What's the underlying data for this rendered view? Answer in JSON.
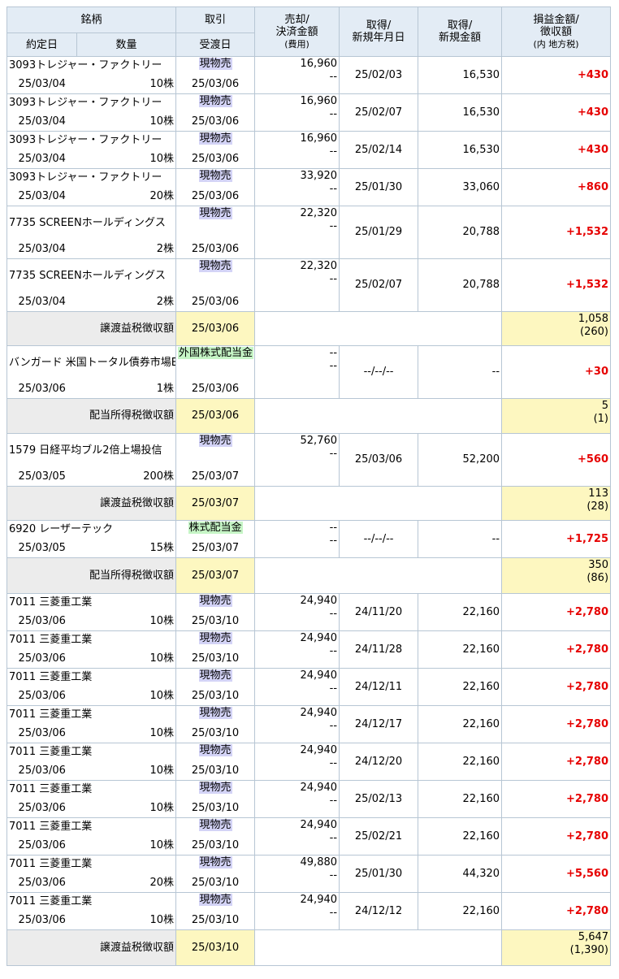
{
  "headers": {
    "stock": "銘柄",
    "trade": "取引",
    "contract_date": "約定日",
    "quantity": "数量",
    "settlement_date": "受渡日",
    "sale_line1": "売却/",
    "sale_line2": "決済金額",
    "sale_line3": "(費用)",
    "acq_date_line1": "取得/",
    "acq_date_line2": "新規年月日",
    "acq_amt_line1": "取得/",
    "acq_amt_line2": "新規金額",
    "pl_line1": "損益金額/",
    "pl_line2": "徴収額",
    "pl_line3": "(内 地方税)"
  },
  "rows": [
    {
      "kind": "trade",
      "name": "3093トレジャー・ファクトリー",
      "type": "現物売",
      "type_style": "sell",
      "contract": "25/03/04",
      "qty": "10株",
      "settle": "25/03/06",
      "sale": "16,960",
      "cost": "--",
      "acq_date": "25/02/03",
      "acq_amount": "16,530",
      "pl": "+430"
    },
    {
      "kind": "trade",
      "name": "3093トレジャー・ファクトリー",
      "type": "現物売",
      "type_style": "sell",
      "contract": "25/03/04",
      "qty": "10株",
      "settle": "25/03/06",
      "sale": "16,960",
      "cost": "--",
      "acq_date": "25/02/07",
      "acq_amount": "16,530",
      "pl": "+430"
    },
    {
      "kind": "trade",
      "name": "3093トレジャー・ファクトリー",
      "type": "現物売",
      "type_style": "sell",
      "contract": "25/03/04",
      "qty": "10株",
      "settle": "25/03/06",
      "sale": "16,960",
      "cost": "--",
      "acq_date": "25/02/14",
      "acq_amount": "16,530",
      "pl": "+430"
    },
    {
      "kind": "trade",
      "name": "3093トレジャー・ファクトリー",
      "type": "現物売",
      "type_style": "sell",
      "contract": "25/03/04",
      "qty": "20株",
      "settle": "25/03/06",
      "sale": "33,920",
      "cost": "--",
      "acq_date": "25/01/30",
      "acq_amount": "33,060",
      "pl": "+860"
    },
    {
      "kind": "trade",
      "name": "7735 SCREENホールディングス",
      "type": "現物売",
      "type_style": "sell",
      "contract": "25/03/04",
      "qty": "2株",
      "settle": "25/03/06",
      "sale": "22,320",
      "cost": "--",
      "acq_date": "25/01/29",
      "acq_amount": "20,788",
      "pl": "+1,532"
    },
    {
      "kind": "trade",
      "name": "7735 SCREENホールディングス",
      "type": "現物売",
      "type_style": "sell",
      "contract": "25/03/04",
      "qty": "2株",
      "settle": "25/03/06",
      "sale": "22,320",
      "cost": "--",
      "acq_date": "25/02/07",
      "acq_amount": "20,788",
      "pl": "+1,532"
    },
    {
      "kind": "tax",
      "label": "譲渡益税徴収額",
      "date": "25/03/06",
      "amount": "1,058",
      "local": "(260)"
    },
    {
      "kind": "trade",
      "name": "バンガード 米国トータル債券市場ETF",
      "type": "外国株式配当金",
      "type_style": "div",
      "contract": "25/03/06",
      "qty": "1株",
      "settle": "25/03/06",
      "sale": "--",
      "cost": "--",
      "acq_date": "--/--/--",
      "acq_amount": "--",
      "pl": "+30"
    },
    {
      "kind": "tax",
      "label": "配当所得税徴収額",
      "date": "25/03/06",
      "amount": "5",
      "local": "(1)"
    },
    {
      "kind": "trade",
      "name": "1579 日経平均ブル2倍上場投信",
      "type": "現物売",
      "type_style": "sell",
      "contract": "25/03/05",
      "qty": "200株",
      "settle": "25/03/07",
      "sale": "52,760",
      "cost": "--",
      "acq_date": "25/03/06",
      "acq_amount": "52,200",
      "pl": "+560"
    },
    {
      "kind": "tax",
      "label": "譲渡益税徴収額",
      "date": "25/03/07",
      "amount": "113",
      "local": "(28)"
    },
    {
      "kind": "trade",
      "name": "6920 レーザーテック",
      "type": "株式配当金",
      "type_style": "div",
      "contract": "25/03/05",
      "qty": "15株",
      "settle": "25/03/07",
      "sale": "--",
      "cost": "--",
      "acq_date": "--/--/--",
      "acq_amount": "--",
      "pl": "+1,725"
    },
    {
      "kind": "tax",
      "label": "配当所得税徴収額",
      "date": "25/03/07",
      "amount": "350",
      "local": "(86)"
    },
    {
      "kind": "trade",
      "name": "7011 三菱重工業",
      "type": "現物売",
      "type_style": "sell",
      "contract": "25/03/06",
      "qty": "10株",
      "settle": "25/03/10",
      "sale": "24,940",
      "cost": "--",
      "acq_date": "24/11/20",
      "acq_amount": "22,160",
      "pl": "+2,780"
    },
    {
      "kind": "trade",
      "name": "7011 三菱重工業",
      "type": "現物売",
      "type_style": "sell",
      "contract": "25/03/06",
      "qty": "10株",
      "settle": "25/03/10",
      "sale": "24,940",
      "cost": "--",
      "acq_date": "24/11/28",
      "acq_amount": "22,160",
      "pl": "+2,780"
    },
    {
      "kind": "trade",
      "name": "7011 三菱重工業",
      "type": "現物売",
      "type_style": "sell",
      "contract": "25/03/06",
      "qty": "10株",
      "settle": "25/03/10",
      "sale": "24,940",
      "cost": "--",
      "acq_date": "24/12/11",
      "acq_amount": "22,160",
      "pl": "+2,780"
    },
    {
      "kind": "trade",
      "name": "7011 三菱重工業",
      "type": "現物売",
      "type_style": "sell",
      "contract": "25/03/06",
      "qty": "10株",
      "settle": "25/03/10",
      "sale": "24,940",
      "cost": "--",
      "acq_date": "24/12/17",
      "acq_amount": "22,160",
      "pl": "+2,780"
    },
    {
      "kind": "trade",
      "name": "7011 三菱重工業",
      "type": "現物売",
      "type_style": "sell",
      "contract": "25/03/06",
      "qty": "10株",
      "settle": "25/03/10",
      "sale": "24,940",
      "cost": "--",
      "acq_date": "24/12/20",
      "acq_amount": "22,160",
      "pl": "+2,780"
    },
    {
      "kind": "trade",
      "name": "7011 三菱重工業",
      "type": "現物売",
      "type_style": "sell",
      "contract": "25/03/06",
      "qty": "10株",
      "settle": "25/03/10",
      "sale": "24,940",
      "cost": "--",
      "acq_date": "25/02/13",
      "acq_amount": "22,160",
      "pl": "+2,780"
    },
    {
      "kind": "trade",
      "name": "7011 三菱重工業",
      "type": "現物売",
      "type_style": "sell",
      "contract": "25/03/06",
      "qty": "10株",
      "settle": "25/03/10",
      "sale": "24,940",
      "cost": "--",
      "acq_date": "25/02/21",
      "acq_amount": "22,160",
      "pl": "+2,780"
    },
    {
      "kind": "trade",
      "name": "7011 三菱重工業",
      "type": "現物売",
      "type_style": "sell",
      "contract": "25/03/06",
      "qty": "20株",
      "settle": "25/03/10",
      "sale": "49,880",
      "cost": "--",
      "acq_date": "25/01/30",
      "acq_amount": "44,320",
      "pl": "+5,560"
    },
    {
      "kind": "trade",
      "name": "7011 三菱重工業",
      "type": "現物売",
      "type_style": "sell",
      "contract": "25/03/06",
      "qty": "10株",
      "settle": "25/03/10",
      "sale": "24,940",
      "cost": "--",
      "acq_date": "24/12/12",
      "acq_amount": "22,160",
      "pl": "+2,780"
    },
    {
      "kind": "tax",
      "label": "譲渡益税徴収額",
      "date": "25/03/10",
      "amount": "5,647",
      "local": "(1,390)"
    }
  ]
}
